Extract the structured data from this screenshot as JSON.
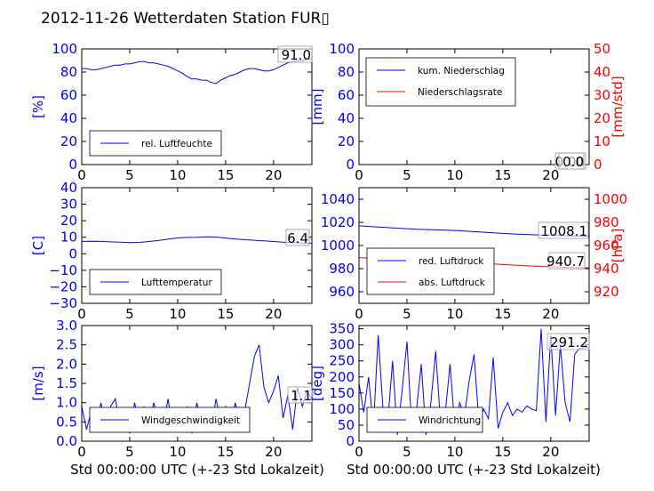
{
  "chart_title": "2012-11-26 Wetterdaten Station FUR▯",
  "x_axis_caption": "Std 00:00:00 UTC (+-23 Std Lokalzeit)",
  "chart_data": [
    {
      "id": "humidity",
      "type": "line",
      "xlim": [
        0,
        24
      ],
      "xticks": [
        "0",
        "5",
        "10",
        "15",
        "20"
      ],
      "ylabel": "[%]",
      "ylim": [
        0,
        100
      ],
      "yticks": [
        "0",
        "20",
        "40",
        "60",
        "80",
        "100"
      ],
      "ytick_color": "#0000ff",
      "grid": false,
      "legend_position": "lower-left",
      "series": [
        {
          "name": "rel. Luftfeuchte",
          "color": "#0000ff",
          "x": [
            0,
            0.5,
            1,
            1.5,
            2,
            2.5,
            3,
            3.5,
            4,
            4.5,
            5,
            5.5,
            6,
            6.5,
            7,
            7.5,
            8,
            8.5,
            9,
            9.5,
            10,
            10.5,
            11,
            11.5,
            12,
            12.5,
            13,
            13.5,
            14,
            14.5,
            15,
            15.5,
            16,
            16.5,
            17,
            17.5,
            18,
            18.5,
            19,
            19.5,
            20,
            20.5,
            21,
            21.5,
            22,
            22.5,
            23,
            23.5,
            24
          ],
          "values": [
            83,
            83,
            82,
            82,
            83,
            84,
            85,
            86,
            86,
            87,
            87,
            88,
            89,
            89,
            88,
            88,
            87,
            86,
            85,
            83,
            81,
            79,
            76,
            74,
            74,
            73,
            73,
            71,
            70,
            73,
            75,
            77,
            78,
            80,
            82,
            83,
            83,
            82,
            81,
            81,
            82,
            84,
            86,
            88,
            89,
            90,
            90,
            91,
            91
          ]
        }
      ],
      "annotation": "91.0"
    },
    {
      "id": "precipitation",
      "type": "line",
      "xlim": [
        0,
        24
      ],
      "xticks": [
        "0",
        "5",
        "10",
        "15",
        "20"
      ],
      "ylabel": "[mm]",
      "ylim": [
        0,
        100
      ],
      "yticks": [
        "0",
        "20",
        "40",
        "60",
        "80",
        "100"
      ],
      "ytick_color": "#0000ff",
      "ylabel_right": "[mm/std]",
      "ylim_right": [
        0,
        50
      ],
      "yticks_right": [
        "0",
        "10",
        "20",
        "30",
        "40",
        "50"
      ],
      "ytick_right_color": "#ff0000",
      "grid": false,
      "legend_position": "upper-left",
      "series": [
        {
          "name": "kum. Niederschlag",
          "color": "#0000ff",
          "x": [
            0,
            24
          ],
          "values": [
            0,
            0
          ]
        },
        {
          "name": "Niederschlagsrate",
          "color": "#ff0000",
          "x": [
            0,
            24
          ],
          "values": [
            0,
            0
          ]
        }
      ],
      "annotation": "0.00",
      "annotation2": "0.0"
    },
    {
      "id": "temperature",
      "type": "line",
      "xlim": [
        0,
        24
      ],
      "xticks": [
        "0",
        "5",
        "10",
        "15",
        "20"
      ],
      "ylabel": "[C]",
      "ylim": [
        -30,
        40
      ],
      "yticks": [
        "−30",
        "−20",
        "−10",
        "0",
        "10",
        "20",
        "30",
        "40"
      ],
      "ytick_color": "#0000ff",
      "grid": false,
      "legend_position": "lower-left",
      "series": [
        {
          "name": "Lufttemperatur",
          "color": "#0000ff",
          "x": [
            0,
            1,
            2,
            3,
            4,
            5,
            6,
            7,
            8,
            9,
            10,
            11,
            12,
            13,
            14,
            15,
            16,
            17,
            18,
            19,
            20,
            21,
            22,
            23,
            24
          ],
          "values": [
            7.5,
            7.6,
            7.5,
            7.2,
            7.0,
            6.8,
            6.9,
            7.4,
            8.0,
            8.8,
            9.6,
            9.9,
            10.0,
            10.3,
            10.1,
            9.5,
            9.0,
            8.5,
            8.2,
            7.8,
            7.4,
            7.0,
            6.8,
            6.5,
            6.4
          ]
        }
      ],
      "annotation": "6.4"
    },
    {
      "id": "pressure",
      "type": "line",
      "xlim": [
        0,
        24
      ],
      "xticks": [
        "0",
        "5",
        "10",
        "15",
        "20"
      ],
      "ylim": [
        950,
        1050
      ],
      "yticks": [
        "960",
        "980",
        "1000",
        "1020",
        "1040"
      ],
      "ytick_color": "#0000ff",
      "ylabel_right": "[hPa]",
      "ylim_right": [
        910,
        1010
      ],
      "yticks_right": [
        "920",
        "940",
        "960",
        "980",
        "1000"
      ],
      "ytick_right_color": "#ff0000",
      "grid": false,
      "legend_position": "lower-left",
      "series": [
        {
          "name": "red. Luftdruck",
          "color": "#0000ff",
          "x": [
            0,
            2,
            4,
            6,
            8,
            10,
            12,
            14,
            16,
            18,
            20,
            22,
            24
          ],
          "values": [
            1017,
            1016,
            1015,
            1014,
            1013.5,
            1013,
            1012,
            1011,
            1010,
            1009.3,
            1008.8,
            1008.3,
            1008.1
          ]
        },
        {
          "name": "abs. Luftdruck",
          "color": "#ff0000",
          "x": [
            0,
            2,
            4,
            6,
            8,
            10,
            12,
            14,
            16,
            18,
            20,
            22,
            24
          ],
          "values": [
            949.5,
            948.8,
            947.9,
            947,
            946.5,
            945.9,
            945.1,
            944,
            943.1,
            942.2,
            941.6,
            941.0,
            940.7
          ]
        }
      ],
      "annotation": "1008.1",
      "annotation2": "940.7"
    },
    {
      "id": "windspeed",
      "type": "line",
      "xlim": [
        0,
        24
      ],
      "xticks": [
        "0",
        "5",
        "10",
        "15",
        "20"
      ],
      "ylabel": "[m/s]",
      "ylim": [
        0,
        3
      ],
      "yticks": [
        "0.0",
        "0.5",
        "1.0",
        "1.5",
        "2.0",
        "2.5",
        "3.0"
      ],
      "ytick_color": "#0000ff",
      "grid": false,
      "legend_position": "lower-left",
      "series": [
        {
          "name": "Windgeschwindigkeit",
          "color": "#0000ff",
          "x": [
            0,
            0.5,
            1,
            1.5,
            2,
            2.5,
            3,
            3.5,
            4,
            4.5,
            5,
            5.5,
            6,
            6.5,
            7,
            7.5,
            8,
            8.5,
            9,
            9.5,
            10,
            10.5,
            11,
            11.5,
            12,
            12.5,
            13,
            13.5,
            14,
            14.5,
            15,
            15.5,
            16,
            16.5,
            17,
            17.5,
            18,
            18.5,
            19,
            19.5,
            20,
            20.5,
            21,
            21.5,
            22,
            22.5,
            23,
            23.5,
            24
          ],
          "values": [
            0.9,
            0.3,
            0.8,
            0.4,
            1.0,
            0.3,
            0.9,
            1.1,
            0.4,
            0.8,
            0.2,
            1.0,
            0.5,
            0.9,
            0.3,
            1.0,
            0.6,
            0.4,
            1.1,
            0.3,
            0.8,
            0.5,
            0.9,
            0.2,
            1.0,
            0.4,
            0.8,
            0.3,
            1.1,
            0.5,
            0.9,
            0.3,
            1.0,
            0.5,
            0.8,
            1.5,
            2.2,
            2.5,
            1.4,
            1.0,
            1.3,
            1.7,
            0.6,
            1.2,
            0.3,
            1.4,
            0.9,
            1.3,
            1.1
          ]
        }
      ],
      "annotation": "1.1"
    },
    {
      "id": "winddirection",
      "type": "line",
      "xlim": [
        0,
        24
      ],
      "xticks": [
        "0",
        "5",
        "10",
        "15",
        "20"
      ],
      "ylabel": "[deg]",
      "ylim": [
        0,
        360
      ],
      "yticks": [
        "0",
        "50",
        "100",
        "150",
        "200",
        "250",
        "300",
        "350"
      ],
      "ytick_color": "#0000ff",
      "grid": false,
      "legend_position": "lower-left",
      "series": [
        {
          "name": "Windrichtung",
          "color": "#0000ff",
          "x": [
            0,
            0.5,
            1,
            1.5,
            2,
            2.5,
            3,
            3.5,
            4,
            4.5,
            5,
            5.5,
            6,
            6.5,
            7,
            7.5,
            8,
            8.5,
            9,
            9.5,
            10,
            10.5,
            11,
            11.5,
            12,
            12.5,
            13,
            13.5,
            14,
            14.5,
            15,
            15.5,
            16,
            16.5,
            17,
            17.5,
            18,
            18.5,
            19,
            19.5,
            20,
            20.5,
            21,
            21.5,
            22,
            22.5,
            23,
            23.5,
            24
          ],
          "values": [
            180,
            90,
            200,
            40,
            330,
            100,
            60,
            250,
            20,
            160,
            310,
            40,
            100,
            240,
            20,
            120,
            280,
            60,
            90,
            240,
            40,
            120,
            80,
            190,
            270,
            60,
            100,
            70,
            260,
            40,
            90,
            120,
            80,
            100,
            90,
            110,
            100,
            95,
            350,
            60,
            330,
            80,
            300,
            120,
            60,
            270,
            290,
            291,
            291.2
          ]
        }
      ],
      "annotation": "291.2"
    }
  ]
}
